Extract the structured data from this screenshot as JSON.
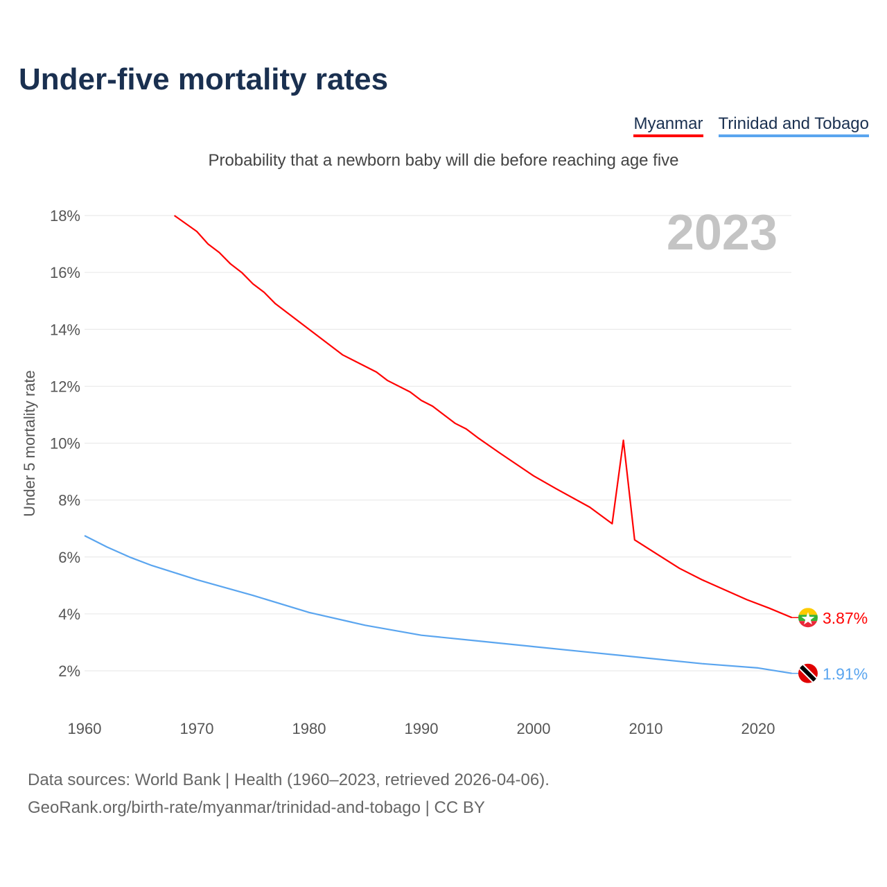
{
  "title": "Under-five mortality rates",
  "subtitle": "Probability that a newborn baby will die before reaching age five",
  "source_line1": "Data sources: World Bank | Health (1960–2023, retrieved 2026-04-06).",
  "source_line2": "GeoRank.org/birth-rate/myanmar/trinidad-and-tobago | CC BY",
  "chart_data": {
    "type": "line",
    "title": "Under-five mortality rates",
    "year_label": "2023",
    "xlabel": "",
    "ylabel": "Under 5 mortality rate",
    "xlim": [
      1960,
      2023
    ],
    "ylim": [
      1,
      18.5
    ],
    "x_ticks": [
      1960,
      1970,
      1980,
      1990,
      2000,
      2010,
      2020
    ],
    "y_ticks": [
      2,
      4,
      6,
      8,
      10,
      12,
      14,
      16,
      18
    ],
    "y_tick_labels": [
      "2%",
      "4%",
      "6%",
      "8%",
      "10%",
      "12%",
      "14%",
      "16%",
      "18%"
    ],
    "grid": true,
    "legend": "top-right",
    "series": [
      {
        "name": "Myanmar",
        "color": "#ff0000",
        "end_label": "3.87%",
        "points": [
          [
            1968,
            18.0
          ],
          [
            1970,
            17.44
          ],
          [
            1971,
            17.0
          ],
          [
            1972,
            16.7
          ],
          [
            1973,
            16.3
          ],
          [
            1974,
            16.0
          ],
          [
            1975,
            15.6
          ],
          [
            1976,
            15.3
          ],
          [
            1977,
            14.9
          ],
          [
            1980,
            14.0
          ],
          [
            1983,
            13.1
          ],
          [
            1986,
            12.5
          ],
          [
            1987,
            12.2
          ],
          [
            1989,
            11.8
          ],
          [
            1990,
            11.5
          ],
          [
            1991,
            11.3
          ],
          [
            1993,
            10.7
          ],
          [
            1994,
            10.5
          ],
          [
            1995,
            10.2
          ],
          [
            1997,
            9.65
          ],
          [
            2000,
            8.85
          ],
          [
            2002,
            8.4
          ],
          [
            2005,
            7.75
          ],
          [
            2007,
            7.17
          ],
          [
            2008,
            10.1
          ],
          [
            2009,
            6.6
          ],
          [
            2011,
            6.1
          ],
          [
            2013,
            5.6
          ],
          [
            2015,
            5.2
          ],
          [
            2017,
            4.85
          ],
          [
            2019,
            4.5
          ],
          [
            2021,
            4.2
          ],
          [
            2023,
            3.87
          ]
        ]
      },
      {
        "name": "Trinidad and Tobago",
        "color": "#5aa5ef",
        "end_label": "1.91%",
        "points": [
          [
            1960,
            6.75
          ],
          [
            1962,
            6.35
          ],
          [
            1964,
            6.0
          ],
          [
            1966,
            5.7
          ],
          [
            1968,
            5.45
          ],
          [
            1970,
            5.2
          ],
          [
            1975,
            4.65
          ],
          [
            1980,
            4.05
          ],
          [
            1985,
            3.6
          ],
          [
            1990,
            3.25
          ],
          [
            1995,
            3.05
          ],
          [
            2000,
            2.85
          ],
          [
            2005,
            2.65
          ],
          [
            2010,
            2.45
          ],
          [
            2015,
            2.25
          ],
          [
            2020,
            2.1
          ],
          [
            2023,
            1.91
          ]
        ]
      }
    ]
  }
}
